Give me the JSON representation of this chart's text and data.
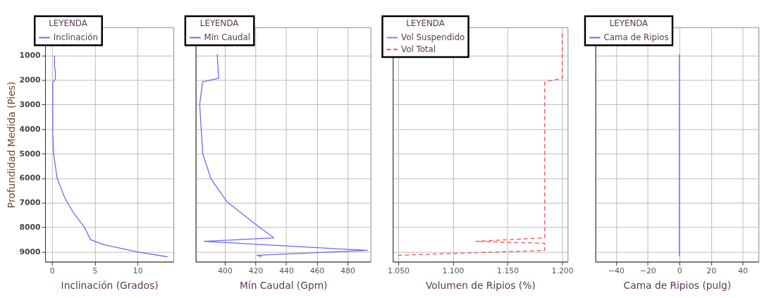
{
  "chart_data": [
    {
      "type": "line",
      "xlabel": "Inclinación (Grados)",
      "ylabel": "Profundidad Medida (Pies)",
      "legend_title": "LEYENDA",
      "legend": "top left",
      "grid": true,
      "xlim": [
        -0.8,
        14.2
      ],
      "xticks": [
        0,
        5,
        10
      ],
      "ylim": [
        9400,
        -150
      ],
      "yticks": [
        1000,
        2000,
        3000,
        4000,
        5000,
        6000,
        7000,
        8000,
        9000
      ],
      "series": [
        {
          "name": "Inclinación",
          "color": "#6a6af0",
          "line_style": "solid",
          "x": [
            0.3,
            0.3,
            0.4,
            0.4,
            0.1,
            0.1,
            0.2,
            0.6,
            1.5,
            2.5,
            3.8,
            4.5,
            6.0,
            10.0,
            13.5
          ],
          "values": [
            1000,
            1500,
            1600,
            1950,
            2100,
            4200,
            5000,
            6000,
            6800,
            7400,
            8000,
            8500,
            8700,
            9000,
            9200
          ]
        }
      ]
    },
    {
      "type": "line",
      "xlabel": "Mín Caudal (Gpm)",
      "legend_title": "LEYENDA",
      "legend": "top left",
      "grid": true,
      "tick_labels": "x",
      "xlim": [
        381,
        495
      ],
      "xticks": [
        400,
        420,
        440,
        460,
        480
      ],
      "ylim": [
        9400,
        -150
      ],
      "yticks": [
        1000,
        2000,
        3000,
        4000,
        5000,
        6000,
        7000,
        8000,
        9000
      ],
      "series": [
        {
          "name": "Mín Caudal",
          "color": "#6a6af0",
          "line_style": "solid",
          "x": [
            395,
            396,
            385.5,
            383.6,
            385.6,
            391,
            401.4,
            421,
            432,
            386.4,
            493,
            421,
            424
          ],
          "values": [
            950,
            1930,
            2070,
            3000,
            5000,
            6030,
            6960,
            7920,
            8430,
            8570,
            8940,
            9140,
            9190
          ]
        }
      ]
    },
    {
      "type": "line",
      "xlabel": "Volumen de Ripios (%)",
      "legend_title": "LEYENDA",
      "legend": "top left",
      "grid": true,
      "tick_labels": "x",
      "xlim": [
        1.045,
        1.205
      ],
      "xticks": [
        {
          "value": 1.05,
          "label": "1.050"
        },
        {
          "value": 1.1,
          "label": "1.100"
        },
        {
          "value": 1.15,
          "label": "1.150"
        },
        {
          "value": 1.2,
          "label": "1.200"
        }
      ],
      "ylim": [
        9400,
        -150
      ],
      "yticks": [
        1000,
        2000,
        3000,
        4000,
        5000,
        6000,
        7000,
        8000,
        9000
      ],
      "series": [
        {
          "name": "Vol Suspendido",
          "color": "#6a8ee0",
          "line_style": "solid",
          "x": [
            null
          ],
          "values": [
            null
          ]
        },
        {
          "name": "Vol Total",
          "color": "#f05050",
          "line_style": "dashed",
          "x": [
            1.2,
            1.2,
            1.184,
            1.184,
            1.121,
            1.182,
            1.184,
            1.184,
            1.049
          ],
          "values": [
            100,
            1930,
            2070,
            8430,
            8570,
            8650,
            8650,
            8940,
            9140
          ]
        }
      ]
    },
    {
      "type": "line",
      "xlabel": "Cama de Ripios (pulg)",
      "legend_title": "LEYENDA",
      "legend": "top left",
      "grid": true,
      "tick_labels": "x",
      "xlim": [
        -53,
        50
      ],
      "xticks": [
        -40,
        -20,
        0,
        20,
        40
      ],
      "ylim": [
        9400,
        -150
      ],
      "yticks": [
        1000,
        2000,
        3000,
        4000,
        5000,
        6000,
        7000,
        8000,
        9000
      ],
      "series": [
        {
          "name": "Cama de Ripios",
          "color": "#6a6af0",
          "line_style": "solid",
          "x": [
            0,
            0
          ],
          "values": [
            950,
            9170
          ]
        }
      ]
    }
  ]
}
